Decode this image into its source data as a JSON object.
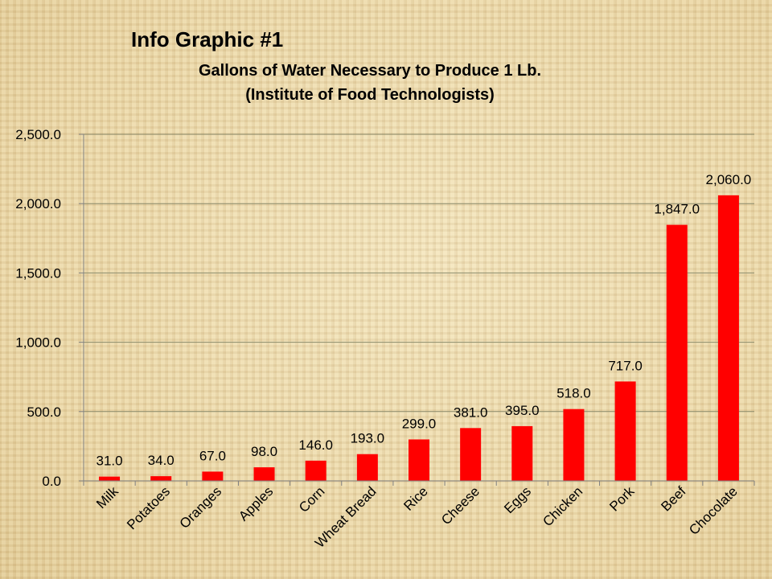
{
  "colors": {
    "bar": "#ff0000",
    "grid": "#8a8a6a",
    "axis": "#808080",
    "text": "#000000"
  },
  "chart_data": {
    "type": "bar",
    "title": "Info Graphic #1",
    "subtitle_lines": [
      "Gallons of Water Necessary to Produce 1 Lb.",
      "(Institute of Food Technologists)"
    ],
    "categories": [
      "Milk",
      "Potatoes",
      "Oranges",
      "Apples",
      "Corn",
      "Wheat Bread",
      "Rice",
      "Cheese",
      "Eggs",
      "Chicken",
      "Pork",
      "Beef",
      "Chocolate"
    ],
    "values": [
      31,
      34,
      67,
      98,
      146,
      193,
      299,
      381,
      395,
      518,
      717,
      1847,
      2060
    ],
    "value_labels": [
      "31.0",
      "34.0",
      "67.0",
      "98.0",
      "146.0",
      "193.0",
      "299.0",
      "381.0",
      "395.0",
      "518.0",
      "717.0",
      "1,847.0",
      "2,060.0"
    ],
    "yticks": [
      0,
      500,
      1000,
      1500,
      2000,
      2500
    ],
    "ytick_labels": [
      "0.0",
      "500.0",
      "1,000.0",
      "1,500.0",
      "2,000.0",
      "2,500.0"
    ],
    "ylim": [
      0,
      2500
    ],
    "grid": true,
    "legend": false
  }
}
